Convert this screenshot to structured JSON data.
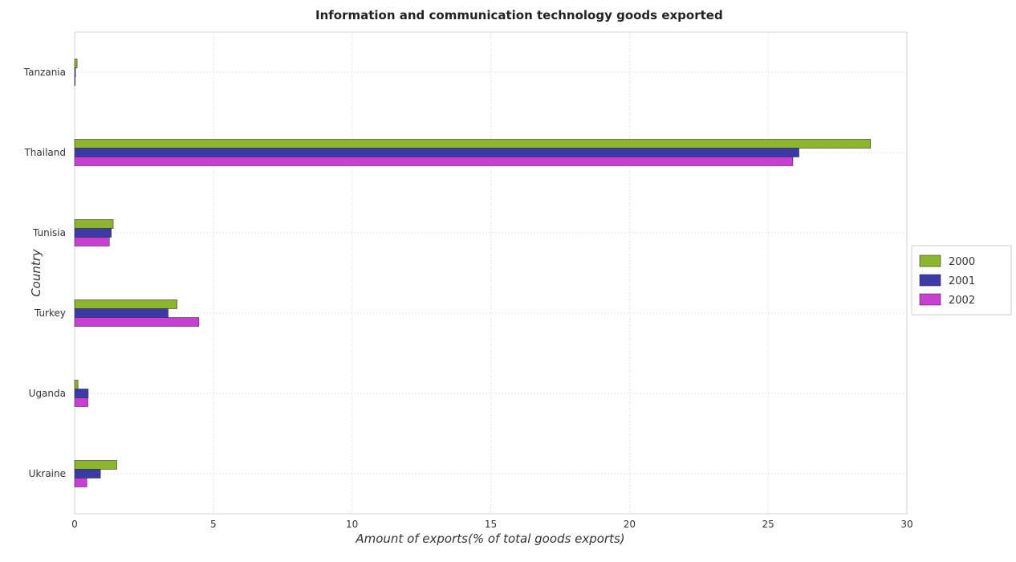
{
  "chart_data": {
    "type": "bar",
    "orientation": "horizontal",
    "title": "Information and communication technology goods exported",
    "xlabel": "Amount of exports(% of total goods exports)",
    "ylabel": "Country",
    "xlim": [
      0,
      30
    ],
    "xticks": [
      0,
      5,
      10,
      15,
      20,
      25,
      30
    ],
    "xtick_labels": [
      "0",
      "5",
      "10",
      "15",
      "20",
      "25",
      "30"
    ],
    "grid": true,
    "legend_position": "right",
    "categories": [
      "Tanzania",
      "Thailand",
      "Tunisia",
      "Turkey",
      "Uganda",
      "Ukraine"
    ],
    "series": [
      {
        "name": "2000",
        "color": "#8db52c",
        "values": [
          0.09,
          28.69,
          1.39,
          3.69,
          0.12,
          1.52
        ]
      },
      {
        "name": "2001",
        "color": "#3c3aa8",
        "values": [
          0.03,
          26.11,
          1.32,
          3.37,
          0.49,
          0.93
        ]
      },
      {
        "name": "2002",
        "color": "#c93fd4",
        "values": [
          0.02,
          25.89,
          1.25,
          4.48,
          0.48,
          0.44
        ]
      }
    ]
  }
}
